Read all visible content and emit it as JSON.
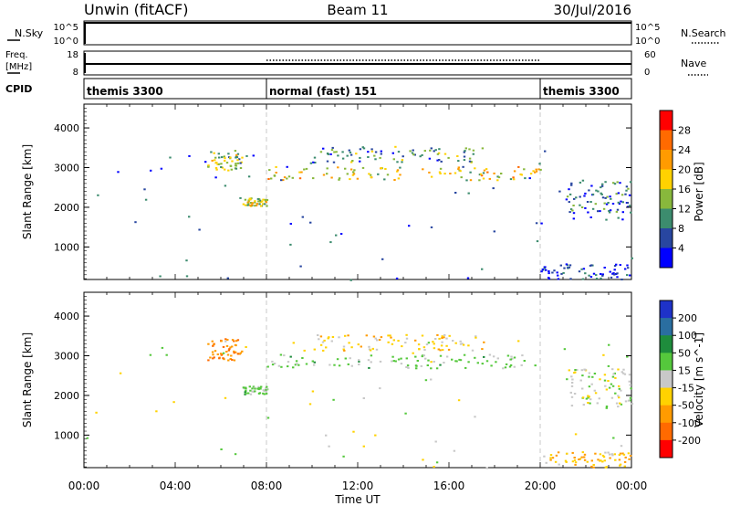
{
  "header": {
    "title": "Unwin (fitACF)",
    "beam": "Beam 11",
    "date": "30/Jul/2016"
  },
  "strip_labels": {
    "nsky": "N.Sky",
    "nsearch": "N.Search",
    "freq_line1": "Freq.",
    "freq_line2": "[MHz]",
    "nave": "Nave",
    "cpid": "CPID"
  },
  "strip_ticks": {
    "nsky_top": "10^5",
    "nsky_bottom": "10^0",
    "nsearch_top": "10^5",
    "nsearch_bottom": "10^0",
    "freq_top": "18",
    "freq_bottom": "8",
    "nave_top": "60",
    "nave_bottom": "0"
  },
  "cpid_segments": [
    {
      "label": "themis 3300",
      "start_hour": 0,
      "end_hour": 8
    },
    {
      "label": "normal (fast) 151",
      "start_hour": 8,
      "end_hour": 20
    },
    {
      "label": "themis 3300",
      "start_hour": 20,
      "end_hour": 24
    }
  ],
  "power_colorbar": {
    "label": "Power [dB]",
    "ticks": [
      "28",
      "24",
      "20",
      "16",
      "12",
      "8",
      "4"
    ],
    "colors": [
      "#ff0000",
      "#ff6a00",
      "#ff9b00",
      "#ffd200",
      "#88b83c",
      "#3c8c6e",
      "#2846a0",
      "#0000ff"
    ]
  },
  "velocity_colorbar": {
    "label": "Velocity [m s^-1]",
    "ticks": [
      "200",
      "100",
      "50",
      "15",
      "-15",
      "-50",
      "-100",
      "-200"
    ],
    "colors": [
      "#1e32c8",
      "#2a6ea0",
      "#1e8c3c",
      "#55c83c",
      "#c8c8c8",
      "#ffd200",
      "#ff9b00",
      "#ff6a00",
      "#ff0000"
    ]
  },
  "chart_data": [
    {
      "type": "heatmap",
      "title": "Power",
      "ylabel": "Slant Range [km]",
      "ylim": [
        180,
        4600
      ],
      "yticks": [
        "4000",
        "3000",
        "2000",
        "1000"
      ],
      "xlim": [
        0,
        24
      ],
      "colorbar_label": "Power [dB]",
      "regions": [
        {
          "x": [
            5.4,
            6.9
          ],
          "y": [
            2900,
            3450
          ],
          "value": 16
        },
        {
          "x": [
            6.9,
            8.0
          ],
          "y": [
            2050,
            2250
          ],
          "value": 18
        },
        {
          "x": [
            8.0,
            20.0
          ],
          "y": [
            2700,
            3050
          ],
          "value": 20
        },
        {
          "x": [
            10.0,
            17.5
          ],
          "y": [
            3150,
            3550
          ],
          "value": 12
        },
        {
          "x": [
            21.1,
            24.0
          ],
          "y": [
            1700,
            2700
          ],
          "value": 10
        },
        {
          "x": [
            20.0,
            24.0
          ],
          "y": [
            200,
            600
          ],
          "value": 6
        }
      ]
    },
    {
      "type": "heatmap",
      "title": "Velocity",
      "ylabel": "Slant Range [km]",
      "ylim": [
        180,
        4600
      ],
      "yticks": [
        "4000",
        "3000",
        "2000",
        "1000"
      ],
      "xlim": [
        0,
        24
      ],
      "colorbar_label": "Velocity [m s^-1]",
      "regions": [
        {
          "x": [
            5.4,
            6.9
          ],
          "y": [
            2900,
            3450
          ],
          "value": -90
        },
        {
          "x": [
            6.9,
            8.0
          ],
          "y": [
            2050,
            2250
          ],
          "value": 30
        },
        {
          "x": [
            8.0,
            20.0
          ],
          "y": [
            2700,
            3050
          ],
          "value": 25
        },
        {
          "x": [
            10.0,
            17.5
          ],
          "y": [
            3150,
            3550
          ],
          "value": -30
        },
        {
          "x": [
            21.1,
            24.0
          ],
          "y": [
            1700,
            2700
          ],
          "value": 0
        },
        {
          "x": [
            20.0,
            24.0
          ],
          "y": [
            200,
            600
          ],
          "value": -40
        }
      ]
    }
  ],
  "x_axis": {
    "label": "Time UT",
    "ticks": [
      "00:00",
      "04:00",
      "08:00",
      "12:00",
      "16:00",
      "20:00",
      "00:00"
    ]
  }
}
